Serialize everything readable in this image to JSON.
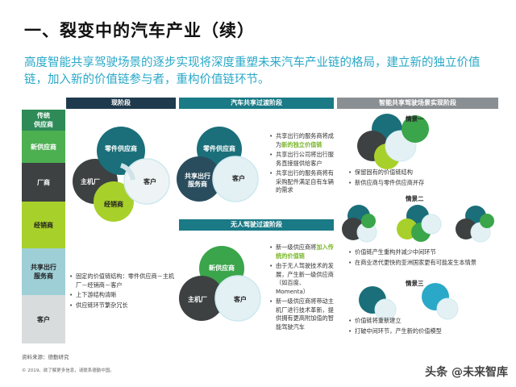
{
  "title": "一、裂变中的汽车产业（续）",
  "subtitle": "高度智能共享驾驶场景的逐步实现将深度重塑未来汽车产业链的格局，建立新的独立价值链，加入新的价值链参与者，重构价值链环节。",
  "stages": {
    "current": "现阶段",
    "shared": "汽车共享过渡阶段",
    "smart": "智能共享驾驶场景实现阶段",
    "driverless": "无人驾驶过渡阶段"
  },
  "rows": [
    {
      "label": "传统\n供应商",
      "color": "#2e8b57"
    },
    {
      "label": "新供应商",
      "color": "#4caf50"
    },
    {
      "label": "厂商",
      "color": "#3d4142"
    },
    {
      "label": "经销商",
      "color": "#a8d02a"
    },
    {
      "label": "共享出行\n服务商",
      "color": "#9ecfd6"
    },
    {
      "label": "客户",
      "color": "#d9dcdd"
    }
  ],
  "current_diagram": {
    "supplier": "零件供应商",
    "oem": "主机厂",
    "dealer": "经销商",
    "customer": "客户"
  },
  "current_bullets": [
    "固定的价值链结构：零件供应商－主机厂－经销商－客户",
    "上下游结构清晰",
    "供应链环节繁杂冗长"
  ],
  "shared_diagram": {
    "supplier": "零件供应商",
    "mobility": "共享出行\n服务商",
    "customer": "客户"
  },
  "shared_bullets": [
    {
      "pre": "共享出行的服务商将成为",
      "hl": "新的独立价值链",
      "post": ""
    },
    {
      "pre": "共享出行公司将出行服务直接提供给客户",
      "hl": "",
      "post": ""
    },
    {
      "pre": "共享出行的服务商将有采购配件满足自有车辆的需求",
      "hl": "",
      "post": ""
    }
  ],
  "driverless_diagram": {
    "new_supplier": "新供应商",
    "oem": "主机厂",
    "customer": "客户"
  },
  "driverless_bullets": [
    {
      "pre": "新一级供应商将",
      "hl": "加入传统的价值链",
      "post": ""
    },
    {
      "pre": "由于无人驾驶技术的发展，产生新一级供应商（如百度、Momenta）",
      "hl": "",
      "post": ""
    },
    {
      "pre": "新一级供应商将带动主机厂进行技术革新，提供拥有更高附加值的智能驾驶汽车",
      "hl": "",
      "post": ""
    }
  ],
  "scenarios": [
    {
      "title": "情景一",
      "bullets": [
        "保留固有的价值链结构",
        "新供应商与零件供应商并存"
      ]
    },
    {
      "title": "情景二",
      "bullets": [
        "价值链产生重构并减少中间环节",
        "在商业迭代更快的亚洲国家更有可能发生本情景"
      ]
    },
    {
      "title": "情景三",
      "bullets": [
        "价值链将重新建立",
        "打破中间环节，产生新的价值模型"
      ]
    }
  ],
  "footer": {
    "source": "资料来源：德勤研究",
    "copyright": "© 2019。欲了解更多信息，请联系德勤中国。"
  },
  "watermark": "头条 @未来智库",
  "colors": {
    "teal": "#2aa8c8",
    "dark_navy": "#1f3a4d",
    "dark_teal": "#1a6f7a",
    "grey": "#8a8f93",
    "black_circle": "#3d4142",
    "green_circle": "#a8d02a",
    "new_supplier_green": "#3aa54a",
    "light_blue": "#cde9ef"
  }
}
